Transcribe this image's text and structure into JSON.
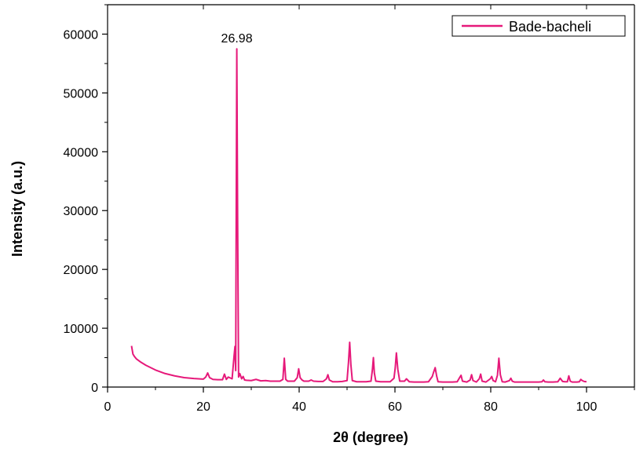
{
  "chart_data": {
    "type": "line",
    "title": "",
    "xlabel": "2θ (degree)",
    "ylabel": "Intensity (a.u.)",
    "xlim": [
      0,
      110
    ],
    "ylim": [
      0,
      65000
    ],
    "x_ticks": [
      0,
      20,
      40,
      60,
      80,
      100
    ],
    "x_tick_labels": [
      "0",
      "20",
      "40",
      "60",
      "80",
      "100"
    ],
    "y_ticks": [
      0,
      10000,
      20000,
      30000,
      40000,
      50000,
      60000
    ],
    "y_tick_labels": [
      "0",
      "10000",
      "20000",
      "30000",
      "40000",
      "50000",
      "60000"
    ],
    "legend": {
      "position": "top-right",
      "entries": [
        "Bade-bacheli"
      ]
    },
    "grid": false,
    "series": [
      {
        "name": "Bade-bacheli",
        "color": "#e6197a",
        "x": [
          5,
          5.3,
          5.6,
          6,
          7,
          8,
          9,
          10,
          12,
          14,
          16,
          18,
          19,
          20,
          20.5,
          20.9,
          21.3,
          22,
          23,
          24,
          24.4,
          24.8,
          25.2,
          26,
          26.4,
          26.6,
          26.75,
          26.98,
          27.15,
          27.35,
          27.6,
          28,
          28.3,
          28.6,
          29,
          30,
          31,
          32,
          33,
          34,
          35,
          36,
          36.6,
          36.9,
          37.2,
          37.6,
          38,
          39,
          39.6,
          39.9,
          40.2,
          40.6,
          41,
          42,
          42.5,
          43,
          44,
          45,
          45.7,
          46,
          46.3,
          47,
          48,
          49,
          50,
          50.3,
          50.55,
          50.8,
          51.1,
          52,
          53,
          54,
          55,
          55.3,
          55.5,
          55.7,
          56,
          57,
          58,
          59,
          59.8,
          60.05,
          60.3,
          60.6,
          61,
          62,
          62.4,
          63,
          64,
          65,
          66,
          67,
          67.8,
          68.1,
          68.4,
          68.7,
          69,
          70,
          71,
          72,
          73,
          73.5,
          73.8,
          74.1,
          75,
          75.7,
          76,
          76.3,
          77,
          77.6,
          77.9,
          78.2,
          79,
          79.9,
          80.2,
          80.5,
          81,
          81.4,
          81.7,
          82,
          82.4,
          83,
          83.9,
          84.2,
          84.5,
          85,
          86,
          87,
          88,
          89,
          90,
          90.7,
          91,
          91.3,
          92,
          93,
          94,
          94.5,
          95,
          95.5,
          96,
          96.3,
          96.6,
          97,
          98,
          98.5,
          98.8,
          99.1,
          99.5,
          100
        ],
        "y": [
          7000,
          5600,
          5200,
          4800,
          4200,
          3700,
          3300,
          2900,
          2300,
          1900,
          1600,
          1450,
          1400,
          1350,
          1700,
          2400,
          1600,
          1300,
          1250,
          1250,
          2200,
          1300,
          1700,
          1400,
          5200,
          6900,
          2800,
          57500,
          29000,
          1700,
          2300,
          1400,
          1800,
          1200,
          1150,
          1100,
          1300,
          1050,
          1100,
          1000,
          1000,
          1000,
          1300,
          4900,
          1300,
          1000,
          1000,
          1000,
          1600,
          3100,
          1600,
          1200,
          1000,
          1000,
          1200,
          1000,
          950,
          950,
          1400,
          2100,
          1200,
          900,
          900,
          950,
          1100,
          4200,
          7600,
          3800,
          1100,
          900,
          900,
          900,
          1000,
          3000,
          5000,
          2400,
          1000,
          900,
          900,
          900,
          1500,
          3200,
          5800,
          3000,
          1000,
          1000,
          1400,
          900,
          850,
          850,
          850,
          900,
          1800,
          2600,
          3300,
          1900,
          900,
          850,
          850,
          850,
          900,
          1600,
          2000,
          1000,
          850,
          1200,
          2100,
          1100,
          850,
          1400,
          2200,
          1000,
          850,
          1400,
          1800,
          1100,
          900,
          2000,
          4900,
          2100,
          900,
          850,
          1100,
          1500,
          1000,
          850,
          850,
          850,
          850,
          850,
          850,
          900,
          1200,
          900,
          850,
          850,
          900,
          1500,
          950,
          900,
          900,
          1900,
          1000,
          850,
          850,
          900,
          1300,
          1100,
          950,
          900
        ]
      }
    ],
    "annotations": [
      {
        "text": "26.98",
        "x": 26.98,
        "y": 57500
      }
    ]
  }
}
